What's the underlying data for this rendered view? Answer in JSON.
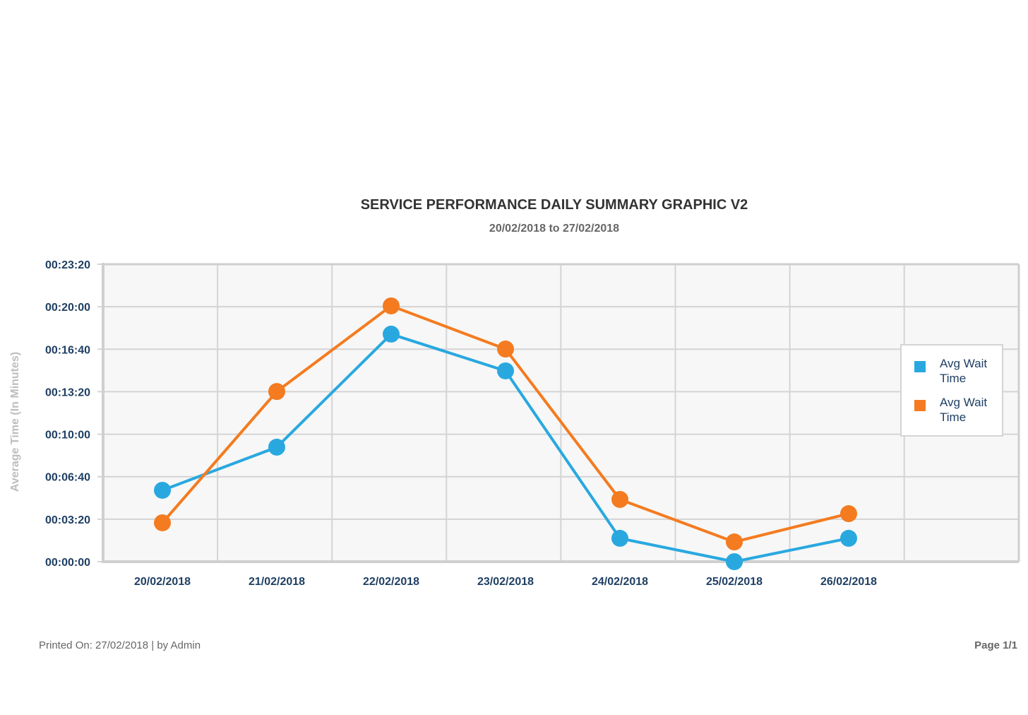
{
  "chart_data": {
    "type": "line",
    "title": "SERVICE PERFORMANCE DAILY SUMMARY GRAPHIC V2",
    "subtitle": "20/02/2018 to 27/02/2018",
    "ylabel": "Average Time (In Minutes)",
    "xlabel": "",
    "categories": [
      "20/02/2018",
      "21/02/2018",
      "22/02/2018",
      "23/02/2018",
      "24/02/2018",
      "25/02/2018",
      "26/02/2018"
    ],
    "y_unit": "seconds",
    "ylim": [
      0,
      1400
    ],
    "yticks": [
      0,
      200,
      400,
      600,
      800,
      1000,
      1200,
      1400
    ],
    "ytick_labels": [
      "00:00:00",
      "00:03:20",
      "00:06:40",
      "00:10:00",
      "00:13:20",
      "00:16:40",
      "00:20:00",
      "00:23:20"
    ],
    "grid": true,
    "legend_position": "right",
    "series": [
      {
        "name": "Avg Wait Time",
        "color": "#29a8e0",
        "values": [
          336,
          539,
          1071,
          898,
          110,
          0,
          110
        ]
      },
      {
        "name": "Avg Wait Time",
        "color": "#f47b20",
        "values": [
          183,
          801,
          1204,
          1001,
          293,
          93,
          226
        ]
      }
    ]
  },
  "footer": {
    "printed": "Printed On: 27/02/2018 | by Admin",
    "page": "Page 1/1"
  }
}
